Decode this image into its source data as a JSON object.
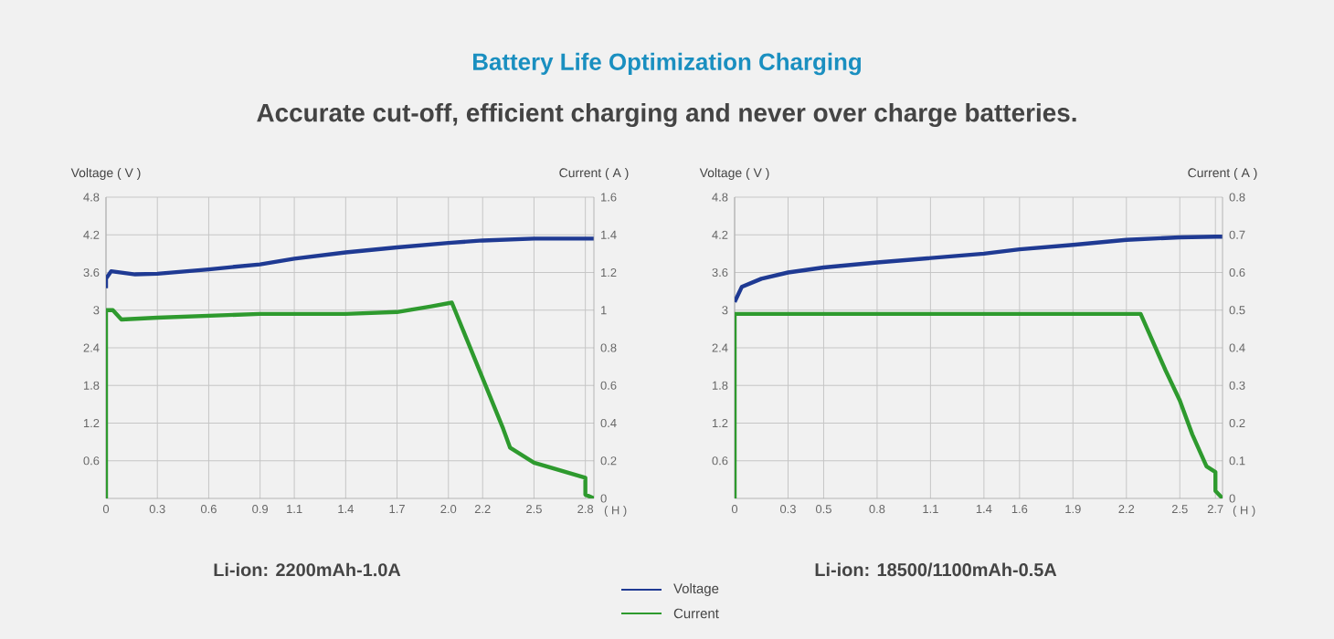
{
  "chart_data": [
    {
      "type": "line",
      "title": "Battery Life Optimization Charging",
      "subtitle": "Accurate cut-off, efficient charging and never over charge batteries.",
      "xlabel": "( H )",
      "ylabel": "Voltage ( V )",
      "y2label": "Current ( A )",
      "annotations": [
        "Li-ion: 2200mAh-1.0A"
      ],
      "xlim": [
        0,
        2.85
      ],
      "xticks": [
        0,
        0.3,
        0.6,
        0.9,
        1.1,
        1.4,
        1.7,
        {
          "value": 2.0,
          "label": "2.0"
        },
        2.2,
        2.5,
        2.8
      ],
      "ylim": [
        0,
        4.8
      ],
      "yticks": [
        0.6,
        1.2,
        1.8,
        2.4,
        3,
        3.6,
        4.2,
        4.8
      ],
      "y2lim": [
        0,
        1.6
      ],
      "y2ticks": [
        0,
        0.2,
        0.4,
        0.6,
        0.8,
        1,
        1.2,
        1.4,
        1.6
      ],
      "grid": true,
      "legend": "bottom right",
      "series": [
        {
          "name": "Voltage",
          "color": "#1f3a93",
          "x": [
            0,
            0,
            0.03,
            0.17,
            0.3,
            0.6,
            0.9,
            1.1,
            1.4,
            1.7,
            2.0,
            2.2,
            2.5,
            2.8,
            2.85
          ],
          "values": [
            3.35,
            3.5,
            3.62,
            3.57,
            3.58,
            3.65,
            3.73,
            3.82,
            3.92,
            4.0,
            4.07,
            4.11,
            4.14,
            4.14,
            4.14
          ]
        },
        {
          "name": "Current",
          "color": "#2e9a2e",
          "axis": "y2",
          "x": [
            0,
            0,
            0.04,
            0.09,
            0.3,
            0.6,
            0.9,
            1.4,
            1.7,
            1.9,
            2.02,
            2.32,
            2.36,
            2.5,
            2.8,
            2.8,
            2.85
          ],
          "values": [
            0,
            1.0,
            1.0,
            0.95,
            0.96,
            0.97,
            0.98,
            0.98,
            0.99,
            1.02,
            1.04,
            0.37,
            0.27,
            0.19,
            0.11,
            0.02,
            0
          ]
        }
      ]
    },
    {
      "type": "line",
      "xlabel": "( H )",
      "ylabel": "Voltage ( V )",
      "y2label": "Current ( A )",
      "annotations": [
        "Li-ion: 18500/1100mAh-0.5A"
      ],
      "xlim": [
        0,
        2.74
      ],
      "xticks": [
        0,
        0.3,
        0.5,
        0.8,
        1.1,
        1.4,
        1.6,
        1.9,
        2.2,
        2.5,
        2.7
      ],
      "ylim": [
        0,
        4.8
      ],
      "yticks": [
        0.6,
        1.2,
        1.8,
        2.4,
        3,
        3.6,
        4.2,
        4.8
      ],
      "y2lim": [
        0,
        0.8
      ],
      "y2ticks": [
        0,
        0.1,
        0.2,
        0.3,
        0.4,
        0.5,
        0.6,
        0.7,
        0.8
      ],
      "grid": true,
      "series": [
        {
          "color": "#1f3a93",
          "x": [
            0,
            0.04,
            0.15,
            0.3,
            0.5,
            0.8,
            1.1,
            1.4,
            1.6,
            1.9,
            2.2,
            2.5,
            2.7,
            2.74
          ],
          "values": [
            3.13,
            3.37,
            3.5,
            3.6,
            3.68,
            3.76,
            3.83,
            3.9,
            3.97,
            4.04,
            4.12,
            4.16,
            4.17,
            4.17
          ]
        },
        {
          "color": "#2e9a2e",
          "axis": "y2",
          "x": [
            0,
            0,
            2.28,
            2.42,
            2.5,
            2.57,
            2.65,
            2.7,
            2.7,
            2.74
          ],
          "values": [
            0,
            0.49,
            0.49,
            0.34,
            0.26,
            0.17,
            0.085,
            0.07,
            0.02,
            0
          ]
        }
      ]
    }
  ]
}
